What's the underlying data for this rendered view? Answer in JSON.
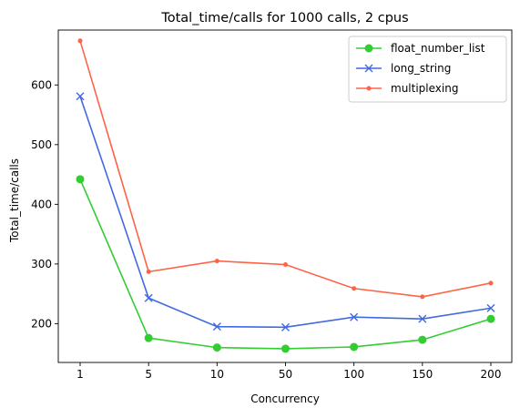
{
  "chart_data": {
    "type": "line",
    "title": "Total_time/calls for 1000 calls, 2 cpus",
    "xlabel": "Concurrency",
    "ylabel": "Total_time/calls",
    "categories": [
      "1",
      "5",
      "10",
      "50",
      "100",
      "150",
      "200"
    ],
    "ylim": [
      135,
      692
    ],
    "yticks": [
      200,
      300,
      400,
      500,
      600
    ],
    "grid": false,
    "legend_position": "top-right",
    "series": [
      {
        "name": "float_number_list",
        "color": "#32cd32",
        "marker": "circle",
        "values": [
          442,
          176,
          160,
          158,
          161,
          173,
          208
        ]
      },
      {
        "name": "long_string",
        "color": "#4169e1",
        "marker": "x",
        "values": [
          581,
          243,
          195,
          194,
          211,
          208,
          226
        ]
      },
      {
        "name": "multiplexing",
        "color": "#ff6347",
        "marker": "dot",
        "values": [
          674,
          287,
          305,
          299,
          259,
          245,
          268
        ]
      }
    ]
  }
}
